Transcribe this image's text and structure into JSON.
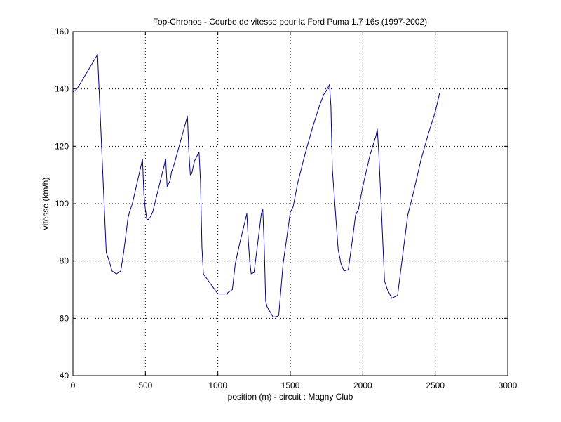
{
  "chart_data": {
    "type": "line",
    "title": "Top-Chronos - Courbe de vitesse pour la Ford Puma 1.7 16s (1997-2002)",
    "xlabel": "position (m) - circuit : Magny Club",
    "ylabel": "vitesse (km/h)",
    "xlim": [
      0,
      3000
    ],
    "ylim": [
      40,
      160
    ],
    "xticks": [
      0,
      500,
      1000,
      1500,
      2000,
      2500,
      3000
    ],
    "yticks": [
      40,
      60,
      80,
      100,
      120,
      140,
      160
    ],
    "grid": true,
    "line_color": "#00008B",
    "series": [
      {
        "x": [
          0,
          20,
          40,
          170,
          230,
          250,
          270,
          300,
          330,
          350,
          380,
          390,
          410,
          480,
          490,
          500,
          510,
          520,
          530,
          550,
          640,
          650,
          660,
          670,
          680,
          700,
          790,
          800,
          810,
          820,
          830,
          840,
          870,
          880,
          890,
          900,
          950,
          1000,
          1020,
          1060,
          1070,
          1100,
          1120,
          1150,
          1200,
          1210,
          1220,
          1230,
          1250,
          1300,
          1310,
          1320,
          1330,
          1340,
          1380,
          1400,
          1420,
          1450,
          1500,
          1520,
          1550,
          1600,
          1650,
          1700,
          1730,
          1750,
          1770,
          1780,
          1790,
          1830,
          1850,
          1870,
          1900,
          1930,
          1950,
          1970,
          2000,
          2050,
          2090,
          2100,
          2110,
          2130,
          2150,
          2170,
          2200,
          2220,
          2240,
          2290,
          2310,
          2350,
          2400,
          2450,
          2500,
          2530
        ],
        "y": [
          139,
          139.5,
          141,
          152,
          83,
          80,
          76.5,
          75.5,
          76.5,
          83,
          95,
          97,
          100,
          115.5,
          103,
          98,
          94.5,
          94.5,
          95,
          97,
          115.5,
          106,
          107,
          108,
          111,
          114,
          130.5,
          118,
          110,
          110.5,
          113,
          115,
          118,
          108,
          85,
          75.5,
          72,
          68.5,
          68.5,
          68.5,
          69,
          70,
          79,
          86,
          96.5,
          87,
          80,
          75.5,
          76,
          96.5,
          98,
          85,
          66,
          64,
          60.5,
          60.5,
          61,
          79,
          97,
          99,
          107,
          117,
          126,
          134,
          138,
          139.5,
          141.5,
          134,
          112,
          84,
          79,
          76.5,
          77,
          88,
          96,
          98,
          106,
          117,
          123.5,
          126,
          118,
          96,
          73,
          70,
          67,
          67.5,
          68,
          88,
          96,
          104,
          115,
          124,
          132,
          138.5
        ]
      }
    ]
  }
}
